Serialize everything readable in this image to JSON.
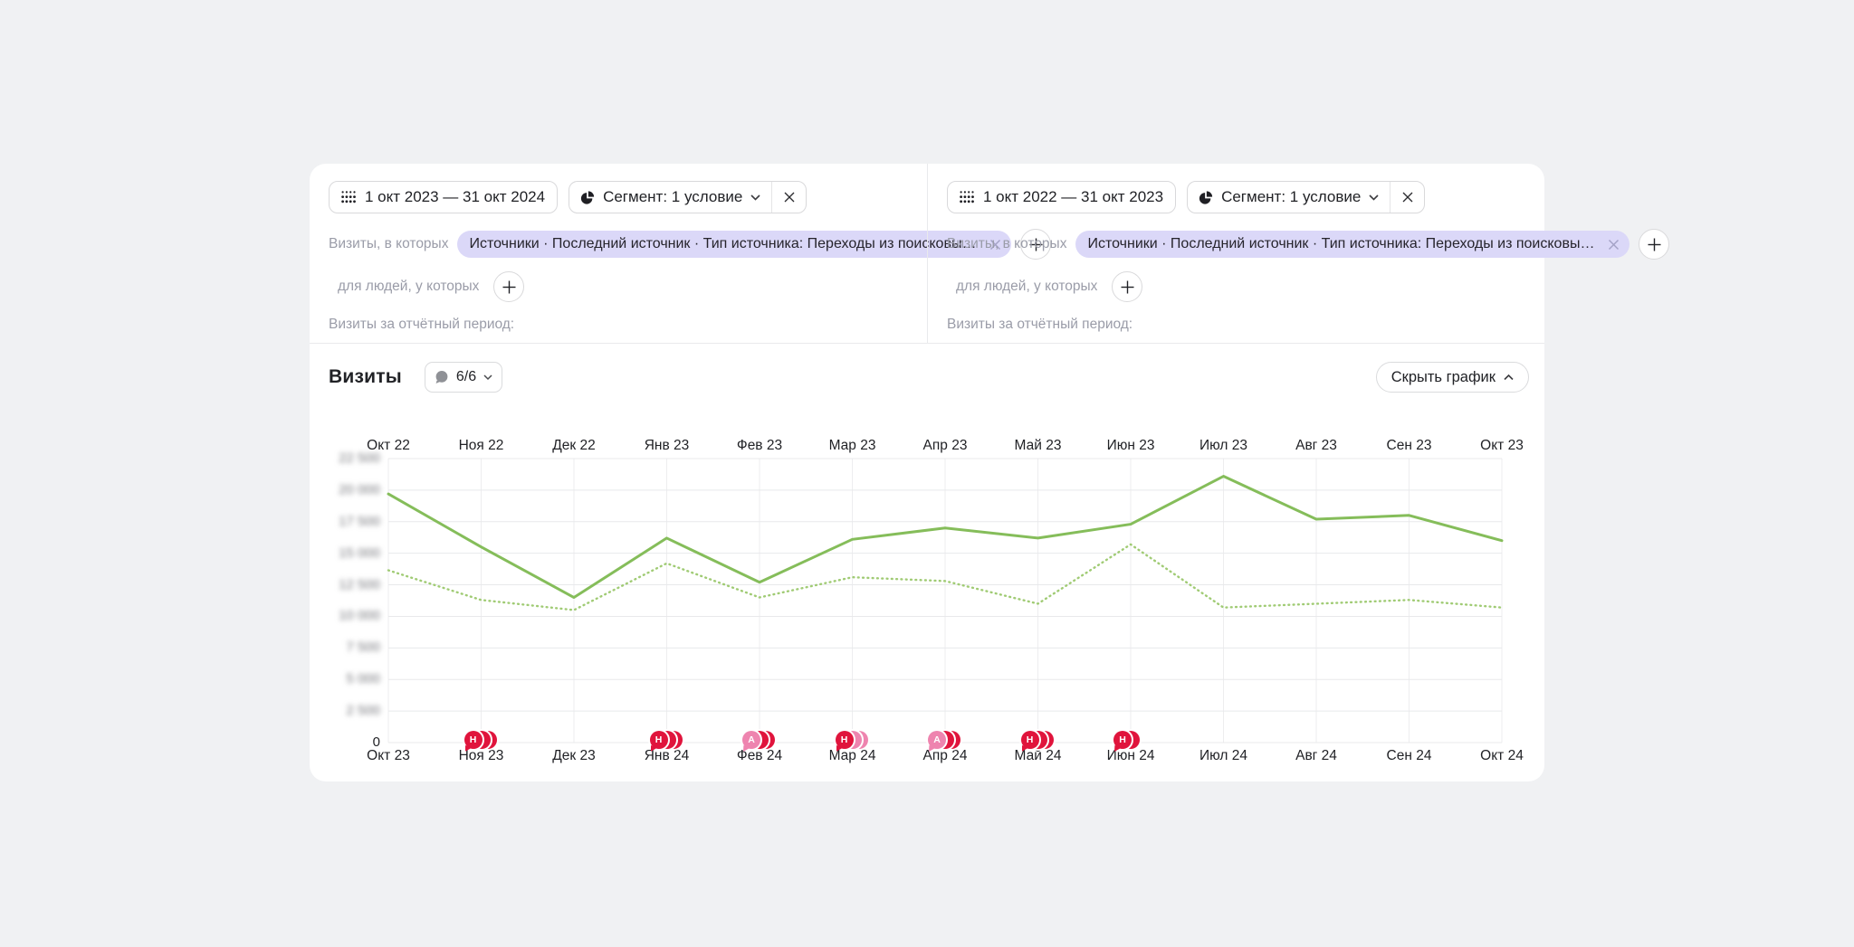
{
  "panels": [
    {
      "date_range": "1 окт 2023 — 31 окт 2024",
      "segment_label": "Сегмент: 1 условие",
      "visits_label": "Визиты, в которых",
      "filter_chip": "Источники · Последний источник · Тип источника: Переходы из поисковых …",
      "people_label": "для людей, у которых",
      "period_label": "Визиты за отчётный период:"
    },
    {
      "date_range": "1 окт 2022 — 31 окт 2023",
      "segment_label": "Сегмент: 1 условие",
      "visits_label": "Визиты, в которых",
      "filter_chip": "Источники · Последний источник · Тип источника: Переходы из поисковых …",
      "people_label": "для людей, у которых",
      "period_label": "Визиты за отчётный период:"
    }
  ],
  "chart_header": {
    "title": "Визиты",
    "comments_badge": "6/6",
    "hide_chart": "Скрыть график"
  },
  "colors": {
    "solid_line": "#85bd5a",
    "dotted_line": "#a0cb74",
    "badge_red": "#e0143c",
    "badge_pink": "#ee84af",
    "chip_bg": "#dbd8f8",
    "grid": "#e8e9eb"
  },
  "chart_data": {
    "type": "line",
    "title": "Визиты",
    "x_axis_top": [
      "Окт 22",
      "Ноя 22",
      "Дек 22",
      "Янв 23",
      "Фев 23",
      "Мар 23",
      "Апр 23",
      "Май 23",
      "Июн 23",
      "Июл 23",
      "Авг 23",
      "Сен 23",
      "Окт 23"
    ],
    "x_axis_bottom": [
      "Окт 23",
      "Ноя 23",
      "Дек 23",
      "Янв 24",
      "Фев 24",
      "Мар 24",
      "Апр 24",
      "Май 24",
      "Июн 24",
      "Июл 24",
      "Авг 24",
      "Сен 24",
      "Окт 24"
    ],
    "ylim": [
      0,
      22500
    ],
    "ytick_step": 2500,
    "ytick_labels": [
      "0",
      "2 500",
      "5 000",
      "7 500",
      "10 000",
      "12 500",
      "15 000",
      "17 500",
      "20 000",
      "22 500"
    ],
    "yticks_blurred_except_zero": true,
    "grid": true,
    "legend": "none",
    "series": [
      {
        "name": "1 окт 2023 — 31 окт 2024",
        "line_style": "solid",
        "color": "#85bd5a",
        "values": [
          19700,
          15500,
          11500,
          16200,
          12700,
          16100,
          17000,
          16200,
          17300,
          21100,
          17700,
          18000,
          16000
        ]
      },
      {
        "name": "1 окт 2022 — 31 окт 2023",
        "line_style": "dotted",
        "color": "#a0cb74",
        "values": [
          13650,
          11300,
          10500,
          14200,
          11500,
          13100,
          12800,
          11000,
          15700,
          10700,
          11000,
          11300,
          10700
        ]
      }
    ],
    "annotations": [
      {
        "x_label": "Ноя 23",
        "month_index": 1,
        "letter": "Н",
        "front_color": "#e0143c",
        "behind_colors": [
          "#e0143c",
          "#e0143c"
        ]
      },
      {
        "x_label": "Янв 24",
        "month_index": 3,
        "letter": "Н",
        "front_color": "#e0143c",
        "behind_colors": [
          "#e0143c",
          "#e0143c"
        ]
      },
      {
        "x_label": "Фев 24",
        "month_index": 4,
        "letter": "А",
        "front_color": "#ee84af",
        "behind_colors": [
          "#e0143c",
          "#e0143c"
        ]
      },
      {
        "x_label": "Мар 24",
        "month_index": 5,
        "letter": "Н",
        "front_color": "#e0143c",
        "behind_colors": [
          "#ee84af",
          "#ee84af"
        ]
      },
      {
        "x_label": "Апр 24",
        "month_index": 6,
        "letter": "А",
        "front_color": "#ee84af",
        "behind_colors": [
          "#e0143c",
          "#e0143c"
        ]
      },
      {
        "x_label": "Май 24",
        "month_index": 7,
        "letter": "Н",
        "front_color": "#e0143c",
        "behind_colors": [
          "#e0143c",
          "#e0143c"
        ]
      },
      {
        "x_label": "Июн 24",
        "month_index": 8,
        "letter": "Н",
        "front_color": "#e0143c",
        "behind_colors": [
          "#e0143c"
        ]
      }
    ]
  }
}
